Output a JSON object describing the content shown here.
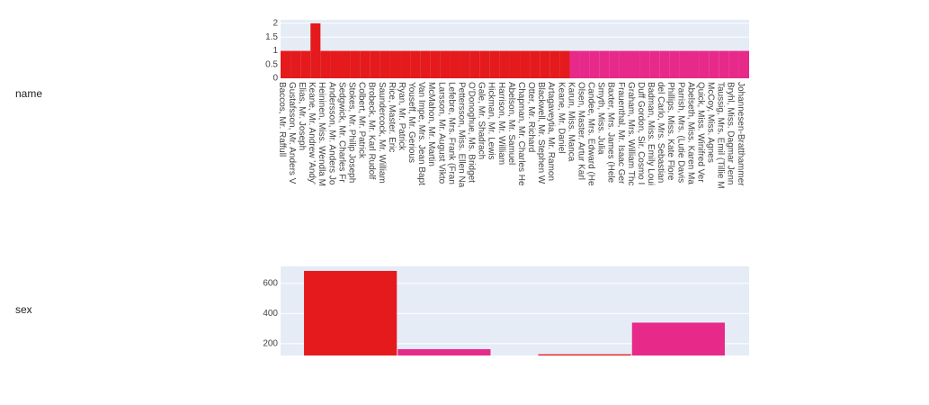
{
  "chart_data": [
    {
      "type": "bar",
      "title": "name",
      "categories": [
        "Baccos, Mr. Raffull",
        "Gustafsson, Mr. Anders V",
        "Elias, Mr. Joseph",
        "Keane, Mr. Andrew 'Andy'",
        "Heininen, Miss. Wendla M",
        "Andersson, Mr. Anders Jo",
        "Sedgwick, Mr. Charles Fr",
        "Stokes, Mr. Philip Joseph",
        "Colbert, Mr. Patrick",
        "Brobeck, Mr. Karl Rudolf",
        "Saundercock, Mr. William",
        "Rice, Master. Eric",
        "Ryan, Mr. Patrick",
        "Youseff, Mr. Gerious",
        "Van Impe, Mrs. Jean Bapt",
        "McMahon, Mr. Martin",
        "Larsson, Mr. August Vikto",
        "Lefebre, Mrs. Frank (Fran",
        "Pettersson, Miss. Ellen Na",
        "O'Donoghue, Ms. Bridget",
        "Gale, Mr. Shadrach",
        "Hickman, Mr. Lewis",
        "Harrison, Mr. William",
        "Abelson, Mr. Samuel",
        "Chapman, Mr. Charles He",
        "Otter, Mr. Richard",
        "Blackwell, Mr. Stephen W",
        "Artagaveytia, Mr. Ramon",
        "Keane, Mr. Daniel",
        "Karun, Miss. Manca",
        "Olsen, Master. Artur Karl",
        "Candee, Mrs. Edward (He",
        "Smyth, Miss. Julia",
        "Baxter, Mrs. James (Hele",
        "Frauenthal, Mr. Isaac Ger",
        "Graham, Mrs. William Thc",
        "Duff Gordon, Sir. Cosmo I",
        "Badman, Miss. Emily Loui",
        "del Carlo, Mrs. Sebastian",
        "Phillips, Miss. Kate Flore",
        "Parrish, Mrs. (Lutie Davis",
        "Abelseth, Miss. Karen Ma",
        "Quick, Miss. Winifred Ver",
        "McCoy, Miss. Agnes",
        "Taussig, Mrs. Emil (Tillie M",
        "Bryhl, Miss. Dagmar Jenn",
        "Johannesen-Bratthammer"
      ],
      "series": [
        {
          "color": "#e41a1c",
          "values": [
            1,
            1,
            1,
            2,
            1,
            1,
            1,
            1,
            1,
            1,
            1,
            1,
            1,
            1,
            1,
            1,
            1,
            1,
            1,
            1,
            1,
            1,
            1,
            1,
            1,
            1,
            1,
            1,
            1,
            0,
            0,
            0,
            0,
            0,
            0,
            0,
            0,
            0,
            0,
            0,
            0,
            0,
            0,
            0,
            0,
            0,
            0
          ]
        },
        {
          "color": "#e7298a",
          "values": [
            0,
            0,
            0,
            0,
            0,
            0,
            0,
            0,
            0,
            0,
            0,
            0,
            0,
            0,
            0,
            0,
            0,
            0,
            0,
            0,
            0,
            0,
            0,
            0,
            0,
            0,
            0,
            0,
            0,
            1,
            1,
            1,
            1,
            1,
            1,
            1,
            1,
            1,
            1,
            1,
            1,
            1,
            1,
            1,
            1,
            1,
            1
          ]
        }
      ],
      "ylim": [
        0,
        2.13
      ],
      "yticks": [
        0,
        0.5,
        1,
        1.5,
        2
      ],
      "grid": true
    },
    {
      "type": "bar",
      "title": "sex",
      "categories": [
        null,
        null
      ],
      "series": [
        {
          "color": "#e41a1c",
          "values": [
            683,
            130
          ]
        },
        {
          "color": "#e7298a",
          "values": [
            164,
            340
          ]
        }
      ],
      "ylim": [
        122,
        713
      ],
      "yticks": [
        200,
        400,
        600
      ],
      "grid": true
    }
  ]
}
